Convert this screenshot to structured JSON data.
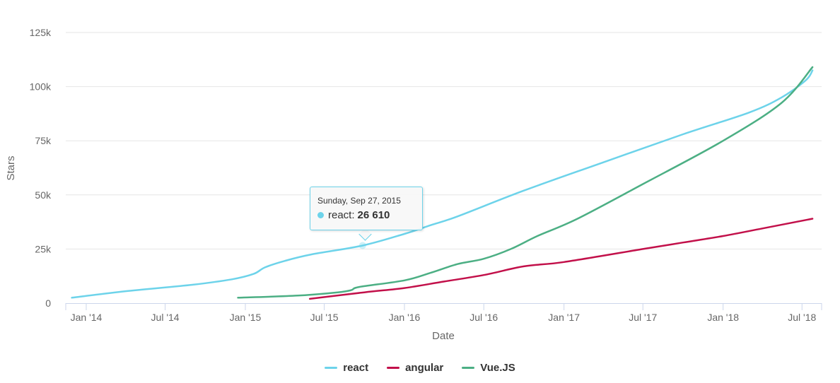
{
  "chart_data": {
    "type": "line",
    "xlabel": "Date",
    "ylabel": "Stars",
    "ylim": [
      0,
      125000
    ],
    "yticks": [
      0,
      25000,
      50000,
      75000,
      100000,
      125000
    ],
    "ytick_labels": [
      "0",
      "25k",
      "50k",
      "75k",
      "100k",
      "125k"
    ],
    "xlim": [
      "2013-11-15",
      "2018-08-15"
    ],
    "xticks": [
      "2014-01-01",
      "2014-07-01",
      "2015-01-01",
      "2015-07-01",
      "2016-01-01",
      "2016-07-01",
      "2017-01-01",
      "2017-07-01",
      "2018-01-01",
      "2018-07-01"
    ],
    "xtick_labels": [
      "Jan '14",
      "Jul '14",
      "Jan '15",
      "Jul '15",
      "Jan '16",
      "Jul '16",
      "Jan '17",
      "Jul '17",
      "Jan '18",
      "Jul '18"
    ],
    "grid": "horizontal",
    "legend_position": "bottom-center",
    "series": [
      {
        "name": "react",
        "color": "#6dd3ea",
        "points": [
          [
            "2013-11-29",
            2500
          ],
          [
            "2014-04-01",
            5500
          ],
          [
            "2014-09-01",
            8500
          ],
          [
            "2014-12-01",
            11000
          ],
          [
            "2015-01-20",
            13500
          ],
          [
            "2015-02-15",
            16500
          ],
          [
            "2015-04-01",
            19500
          ],
          [
            "2015-06-01",
            22500
          ],
          [
            "2015-09-27",
            26610
          ],
          [
            "2016-01-01",
            32000
          ],
          [
            "2016-03-01",
            36000
          ],
          [
            "2016-05-01",
            40000
          ],
          [
            "2016-10-01",
            52000
          ],
          [
            "2017-04-01",
            65000
          ],
          [
            "2017-10-01",
            78000
          ],
          [
            "2018-03-01",
            88000
          ],
          [
            "2018-05-15",
            95000
          ],
          [
            "2018-07-10",
            103000
          ],
          [
            "2018-07-25",
            107500
          ]
        ]
      },
      {
        "name": "angular",
        "color": "#c2104a",
        "points": [
          [
            "2015-05-29",
            2000
          ],
          [
            "2015-10-01",
            5000
          ],
          [
            "2016-01-01",
            7000
          ],
          [
            "2016-04-01",
            10000
          ],
          [
            "2016-07-01",
            13000
          ],
          [
            "2016-10-01",
            17000
          ],
          [
            "2017-01-01",
            19000
          ],
          [
            "2017-07-01",
            25000
          ],
          [
            "2017-10-01",
            28000
          ],
          [
            "2018-01-01",
            31000
          ],
          [
            "2018-04-01",
            34500
          ],
          [
            "2018-07-25",
            39000
          ]
        ]
      },
      {
        "name": "Vue.JS",
        "color": "#4caf84",
        "points": [
          [
            "2014-12-15",
            2500
          ],
          [
            "2015-05-01",
            3500
          ],
          [
            "2015-08-01",
            5000
          ],
          [
            "2015-09-01",
            6000
          ],
          [
            "2015-09-20",
            7500
          ],
          [
            "2016-01-01",
            10500
          ],
          [
            "2016-03-01",
            14000
          ],
          [
            "2016-05-01",
            18000
          ],
          [
            "2016-07-01",
            20500
          ],
          [
            "2016-09-01",
            25000
          ],
          [
            "2016-11-01",
            31000
          ],
          [
            "2017-02-01",
            39000
          ],
          [
            "2017-07-01",
            55000
          ],
          [
            "2018-01-01",
            75000
          ],
          [
            "2018-05-15",
            92500
          ],
          [
            "2018-07-25",
            109000
          ]
        ]
      }
    ],
    "tooltip": {
      "date": "Sunday, Sep 27, 2015",
      "series": "react",
      "series_label": "react:",
      "value": "26 610",
      "x": "2015-09-27",
      "y": 26610
    }
  }
}
